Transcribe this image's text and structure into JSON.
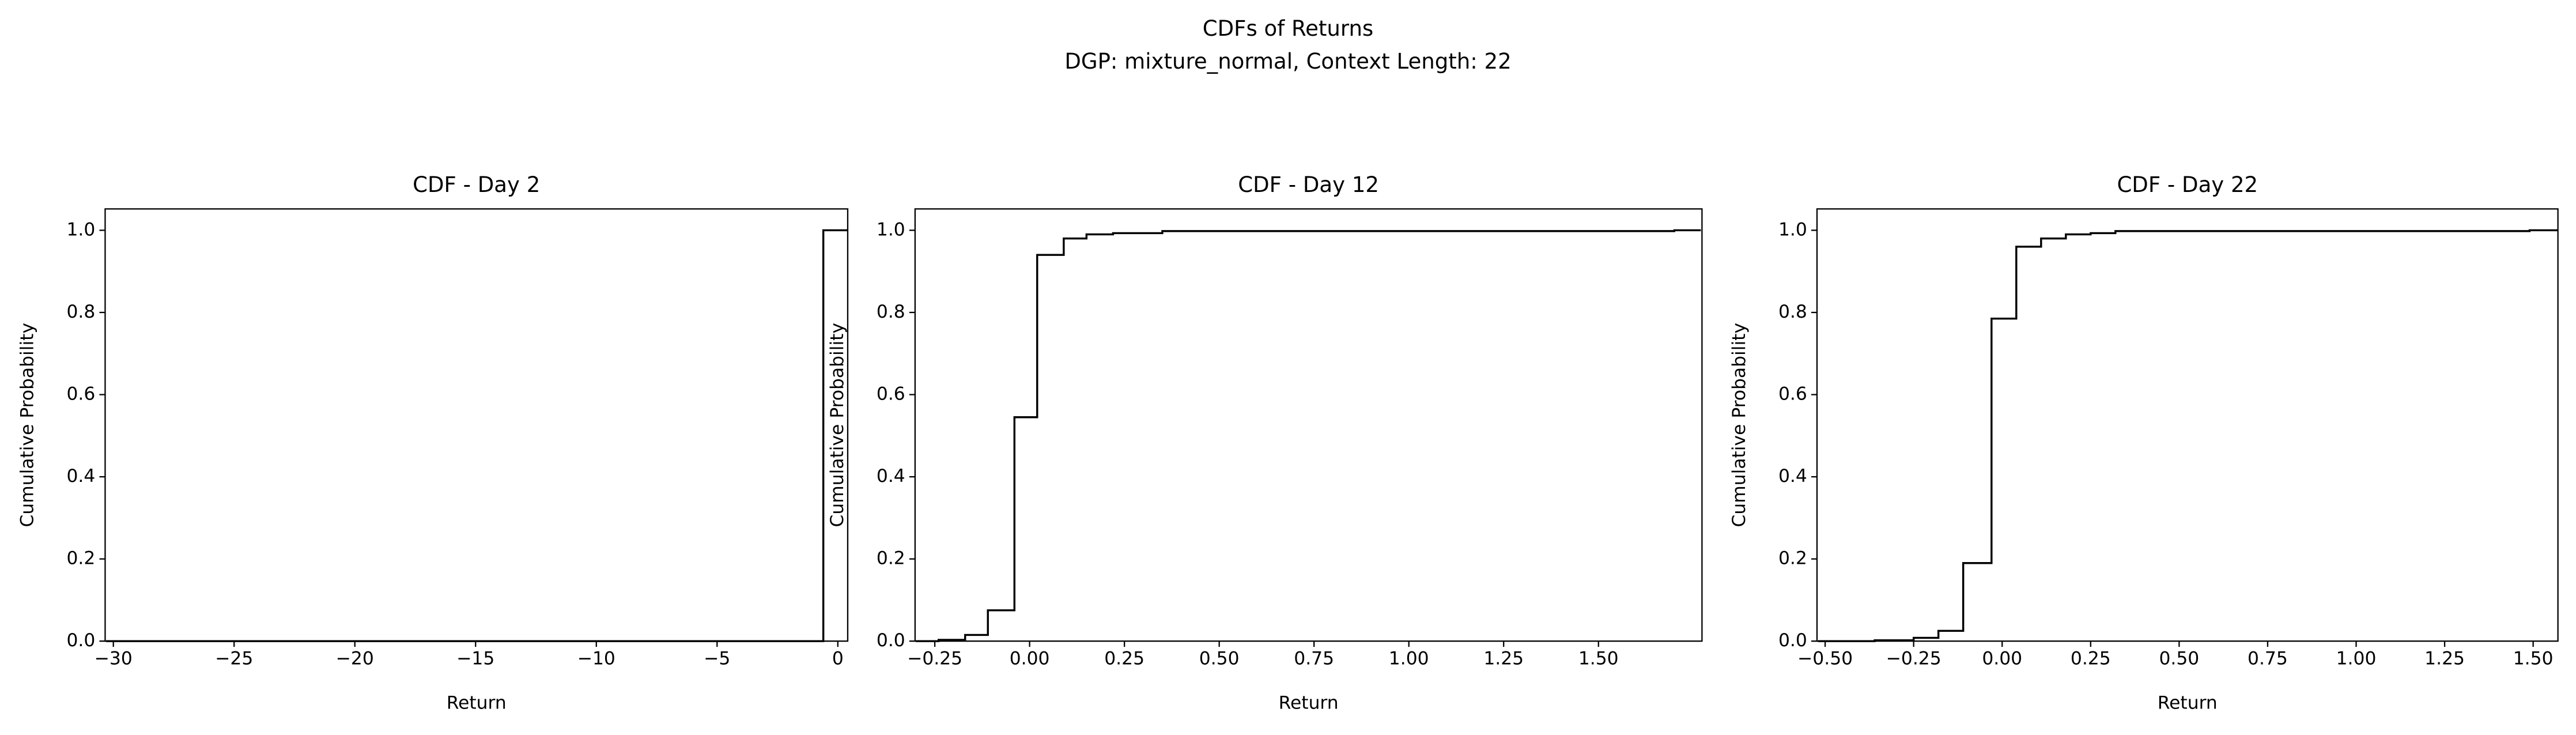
{
  "title": "CDFs of Returns",
  "subtitle": "DGP: mixture_normal, Context Length: 22",
  "chart_data": [
    {
      "type": "step",
      "title": "CDF - Day 2",
      "x_label": "Return",
      "y_label": "Cumulative Probability",
      "color": "#000000",
      "x": [
        -30.3,
        -0.6,
        0.4
      ],
      "values": [
        0.0,
        1.0,
        1.0
      ],
      "xlim": [
        -30.34,
        0.41
      ],
      "ylim": [
        0,
        1.052
      ],
      "xticks": [
        {
          "value": -30,
          "label": "−30"
        },
        {
          "value": -25,
          "label": "−25"
        },
        {
          "value": -20,
          "label": "−20"
        },
        {
          "value": -15,
          "label": "−15"
        },
        {
          "value": -10,
          "label": "−10"
        },
        {
          "value": -5,
          "label": "−5"
        },
        0
      ],
      "yticks": [
        {
          "value": 0,
          "label": "0.0"
        },
        0.2,
        0.4,
        0.6,
        0.8,
        {
          "value": 1,
          "label": "1.0"
        }
      ]
    },
    {
      "type": "step",
      "title": "CDF - Day 12",
      "x_label": "Return",
      "y_label": "Cumulative Probability",
      "color": "#000000",
      "x": [
        -0.3,
        -0.24,
        -0.17,
        -0.11,
        -0.04,
        0.02,
        0.09,
        0.15,
        0.22,
        0.35,
        1.7,
        1.77
      ],
      "values": [
        0.0,
        0.003,
        0.015,
        0.075,
        0.545,
        0.94,
        0.98,
        0.99,
        0.993,
        0.998,
        1.0,
        1.0
      ],
      "xlim": [
        -0.302,
        1.773
      ],
      "ylim": [
        0,
        1.052
      ],
      "xticks": [
        {
          "value": -0.25,
          "label": "−0.25"
        },
        {
          "value": 0,
          "label": "0.00"
        },
        0.25,
        {
          "value": 0.5,
          "label": "0.50"
        },
        0.75,
        {
          "value": 1,
          "label": "1.00"
        },
        1.25,
        {
          "value": 1.5,
          "label": "1.50"
        }
      ],
      "yticks": [
        {
          "value": 0,
          "label": "0.0"
        },
        0.2,
        0.4,
        0.6,
        0.8,
        {
          "value": 1,
          "label": "1.0"
        }
      ]
    },
    {
      "type": "step",
      "title": "CDF - Day 22",
      "x_label": "Return",
      "y_label": "Cumulative Probability",
      "color": "#000000",
      "x": [
        -0.52,
        -0.36,
        -0.25,
        -0.18,
        -0.11,
        -0.03,
        0.04,
        0.11,
        0.18,
        0.25,
        0.32,
        1.49,
        1.57
      ],
      "values": [
        0.0,
        0.002,
        0.008,
        0.025,
        0.19,
        0.785,
        0.96,
        0.98,
        0.99,
        0.993,
        0.998,
        1.0,
        1.0
      ],
      "xlim": [
        -0.523,
        1.57
      ],
      "ylim": [
        0,
        1.052
      ],
      "xticks": [
        {
          "value": -0.5,
          "label": "−0.50"
        },
        {
          "value": -0.25,
          "label": "−0.25"
        },
        {
          "value": 0,
          "label": "0.00"
        },
        0.25,
        {
          "value": 0.5,
          "label": "0.50"
        },
        0.75,
        {
          "value": 1,
          "label": "1.00"
        },
        1.25,
        {
          "value": 1.5,
          "label": "1.50"
        }
      ],
      "yticks": [
        {
          "value": 0,
          "label": "0.0"
        },
        0.2,
        0.4,
        0.6,
        0.8,
        {
          "value": 1,
          "label": "1.0"
        }
      ]
    }
  ]
}
